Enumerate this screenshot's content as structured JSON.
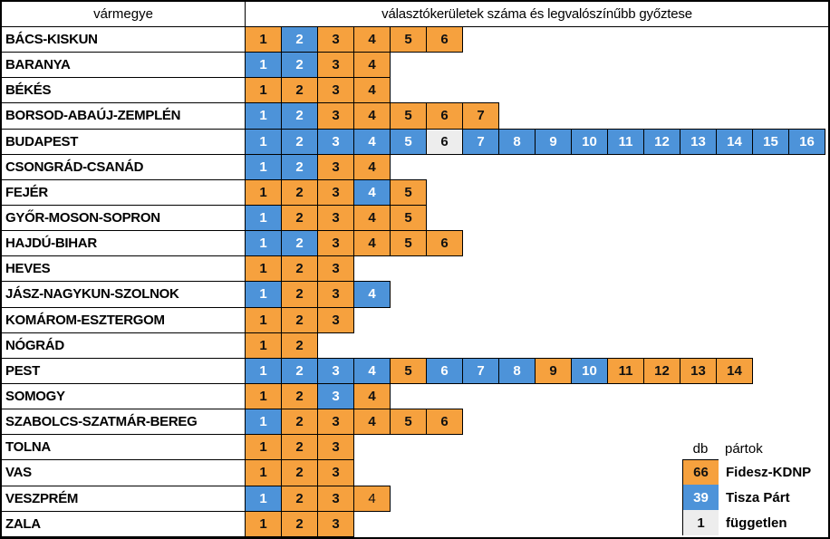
{
  "chart_data": {
    "type": "table",
    "title": "választókerületek száma és legvalószínűbb győztese",
    "header_col1": "vármegye",
    "header_col2": "választókerületek száma és legvalószínűbb győztese",
    "parties": {
      "fidesz": {
        "label": "Fidesz-KDNP",
        "color": "#F6A13E",
        "text_color": "#111111"
      },
      "tisza": {
        "label": "Tisza Párt",
        "color": "#4D93D9",
        "text_color": "#FFFFFF"
      },
      "independent": {
        "label": "független",
        "color": "#EDEDED",
        "text_color": "#111111"
      }
    },
    "rows": [
      {
        "county": "BÁCS-KISKUN",
        "districts": [
          "fidesz",
          "tisza",
          "fidesz",
          "fidesz",
          "fidesz",
          "fidesz"
        ]
      },
      {
        "county": "BARANYA",
        "districts": [
          "tisza",
          "tisza",
          "fidesz",
          "fidesz"
        ]
      },
      {
        "county": "BÉKÉS",
        "districts": [
          "fidesz",
          "fidesz",
          "fidesz",
          "fidesz"
        ]
      },
      {
        "county": "BORSOD-ABAÚJ-ZEMPLÉN",
        "districts": [
          "tisza",
          "tisza",
          "fidesz",
          "fidesz",
          "fidesz",
          "fidesz",
          "fidesz"
        ]
      },
      {
        "county": "BUDAPEST",
        "districts": [
          "tisza",
          "tisza",
          "tisza",
          "tisza",
          "tisza",
          "independent",
          "tisza",
          "tisza",
          "tisza",
          "tisza",
          "tisza",
          "tisza",
          "tisza",
          "tisza",
          "tisza",
          "tisza"
        ]
      },
      {
        "county": "CSONGRÁD-CSANÁD",
        "districts": [
          "tisza",
          "tisza",
          "fidesz",
          "fidesz"
        ]
      },
      {
        "county": "FEJÉR",
        "districts": [
          "fidesz",
          "fidesz",
          "fidesz",
          "tisza",
          "fidesz"
        ]
      },
      {
        "county": "GYŐR-MOSON-SOPRON",
        "districts": [
          "tisza",
          "fidesz",
          "fidesz",
          "fidesz",
          "fidesz"
        ]
      },
      {
        "county": "HAJDÚ-BIHAR",
        "districts": [
          "tisza",
          "tisza",
          "fidesz",
          "fidesz",
          "fidesz",
          "fidesz"
        ]
      },
      {
        "county": "HEVES",
        "districts": [
          "fidesz",
          "fidesz",
          "fidesz"
        ]
      },
      {
        "county": "JÁSZ-NAGYKUN-SZOLNOK",
        "districts": [
          "tisza",
          "fidesz",
          "fidesz",
          "tisza"
        ]
      },
      {
        "county": "KOMÁROM-ESZTERGOM",
        "districts": [
          "fidesz",
          "fidesz",
          "fidesz"
        ]
      },
      {
        "county": "NÓGRÁD",
        "districts": [
          "fidesz",
          "fidesz"
        ]
      },
      {
        "county": "PEST",
        "districts": [
          "tisza",
          "tisza",
          "tisza",
          "tisza",
          "fidesz",
          "tisza",
          "tisza",
          "tisza",
          "fidesz",
          "tisza",
          "fidesz",
          "fidesz",
          "fidesz",
          "fidesz"
        ]
      },
      {
        "county": "SOMOGY",
        "districts": [
          "fidesz",
          "fidesz",
          "tisza",
          "fidesz"
        ]
      },
      {
        "county": "SZABOLCS-SZATMÁR-BEREG",
        "districts": [
          "tisza",
          "fidesz",
          "fidesz",
          "fidesz",
          "fidesz",
          "fidesz"
        ]
      },
      {
        "county": "TOLNA",
        "districts": [
          "fidesz",
          "fidesz",
          "fidesz"
        ]
      },
      {
        "county": "VAS",
        "districts": [
          "fidesz",
          "fidesz",
          "fidesz"
        ]
      },
      {
        "county": "VESZPRÉM",
        "districts": [
          "tisza",
          "fidesz",
          "fidesz",
          "fidesz"
        ],
        "light_numbers": [
          4
        ]
      },
      {
        "county": "ZALA",
        "districts": [
          "fidesz",
          "fidesz",
          "fidesz"
        ]
      }
    ],
    "legend": {
      "count_label": "db",
      "parties_label": "pártok",
      "items": [
        {
          "count": "66",
          "party_key": "fidesz",
          "label": "Fidesz-KDNP"
        },
        {
          "count": "39",
          "party_key": "tisza",
          "label": "Tisza Párt"
        },
        {
          "count": "1",
          "party_key": "independent",
          "label": "független"
        }
      ]
    }
  }
}
